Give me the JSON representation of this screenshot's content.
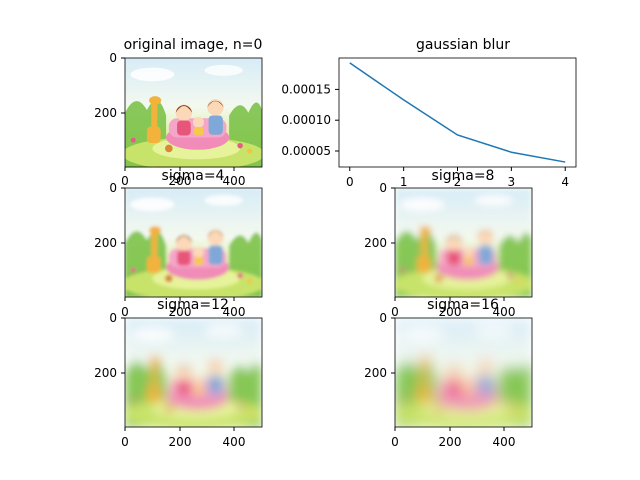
{
  "chart_data": [
    {
      "type": "image",
      "title": "original image, n=0",
      "blur_sigma": 0,
      "xticks": [
        "0",
        "200",
        "400"
      ],
      "yticks": [
        "0",
        "200"
      ],
      "xlim": [
        0,
        500
      ],
      "ylim": [
        400,
        0
      ]
    },
    {
      "type": "line",
      "title": "gaussian blur",
      "x": [
        0,
        1,
        2,
        3,
        4
      ],
      "series": [
        {
          "values": [
            0.000193,
            0.000133,
            7.6e-05,
            4.8e-05,
            3.2e-05
          ],
          "color": "#1f77b4"
        }
      ],
      "xticks": [
        "0",
        "1",
        "2",
        "3",
        "4"
      ],
      "yticks": [
        "0.00005",
        "0.00010",
        "0.00015"
      ],
      "ytick_values": [
        5e-05,
        0.0001,
        0.00015
      ],
      "xlim": [
        -0.2,
        4.2
      ],
      "ylim": [
        2.4e-05,
        0.000201
      ]
    },
    {
      "type": "image",
      "title": "sigma=4",
      "blur_sigma": 4,
      "xticks": [
        "0",
        "200",
        "400"
      ],
      "yticks": [
        "0",
        "200"
      ],
      "xlim": [
        0,
        500
      ],
      "ylim": [
        400,
        0
      ]
    },
    {
      "type": "image",
      "title": "sigma=8",
      "blur_sigma": 8,
      "xticks": [
        "0",
        "200",
        "400"
      ],
      "yticks": [
        "0",
        "200"
      ],
      "xlim": [
        0,
        500
      ],
      "ylim": [
        400,
        0
      ]
    },
    {
      "type": "image",
      "title": "sigma=12",
      "blur_sigma": 12,
      "xticks": [
        "0",
        "200",
        "400"
      ],
      "yticks": [
        "0",
        "200"
      ],
      "xlim": [
        0,
        500
      ],
      "ylim": [
        400,
        0
      ]
    },
    {
      "type": "image",
      "title": "sigma=16",
      "blur_sigma": 16,
      "xticks": [
        "0",
        "200",
        "400"
      ],
      "yticks": [
        "0",
        "200"
      ],
      "xlim": [
        0,
        500
      ],
      "ylim": [
        400,
        0
      ]
    }
  ]
}
